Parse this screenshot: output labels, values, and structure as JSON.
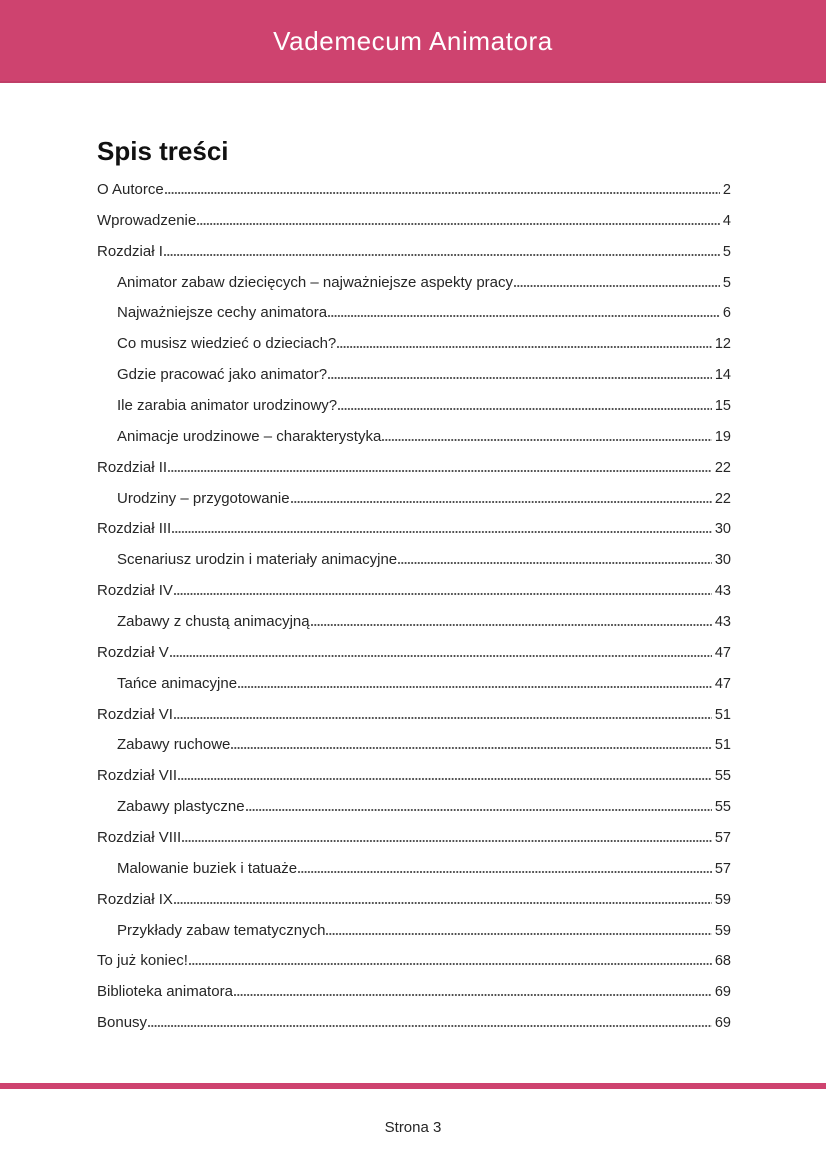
{
  "header": {
    "title": "Vademecum Animatora"
  },
  "toc": {
    "heading": "Spis treści",
    "entries": [
      {
        "label": "O Autorce",
        "page": "2",
        "level": 1
      },
      {
        "label": "Wprowadzenie",
        "page": "4",
        "level": 1
      },
      {
        "label": "Rozdział I",
        "page": "5",
        "level": 1
      },
      {
        "label": "Animator zabaw dziecięcych – najważniejsze aspekty pracy",
        "page": "5",
        "level": 2
      },
      {
        "label": "Najważniejsze cechy animatora",
        "page": "6",
        "level": 2
      },
      {
        "label": "Co musisz wiedzieć o dzieciach?",
        "page": "12",
        "level": 2
      },
      {
        "label": "Gdzie pracować jako animator?",
        "page": "14",
        "level": 2
      },
      {
        "label": "Ile zarabia animator urodzinowy?",
        "page": "15",
        "level": 2
      },
      {
        "label": "Animacje urodzinowe – charakterystyka",
        "page": "19",
        "level": 2
      },
      {
        "label": "Rozdział II",
        "page": "22",
        "level": 1
      },
      {
        "label": "Urodziny – przygotowanie",
        "page": "22",
        "level": 2
      },
      {
        "label": "Rozdział III",
        "page": "30",
        "level": 1
      },
      {
        "label": "Scenariusz urodzin i materiały animacyjne",
        "page": "30",
        "level": 2
      },
      {
        "label": "Rozdział IV",
        "page": "43",
        "level": 1
      },
      {
        "label": "Zabawy z chustą animacyjną",
        "page": "43",
        "level": 2
      },
      {
        "label": "Rozdział V",
        "page": "47",
        "level": 1
      },
      {
        "label": "Tańce animacyjne",
        "page": "47",
        "level": 2
      },
      {
        "label": "Rozdział VI",
        "page": "51",
        "level": 1
      },
      {
        "label": "Zabawy ruchowe",
        "page": "51",
        "level": 2
      },
      {
        "label": "Rozdział VII",
        "page": "55",
        "level": 1
      },
      {
        "label": "Zabawy plastyczne",
        "page": "55",
        "level": 2
      },
      {
        "label": "Rozdział VIII",
        "page": "57",
        "level": 1
      },
      {
        "label": "Malowanie buziek i tatuaże",
        "page": "57",
        "level": 2
      },
      {
        "label": "Rozdział IX",
        "page": "59",
        "level": 1
      },
      {
        "label": "Przykłady zabaw tematycznych",
        "page": "59",
        "level": 2
      },
      {
        "label": "To już koniec!",
        "page": "68",
        "level": 1
      },
      {
        "label": "Biblioteka animatora",
        "page": "69",
        "level": 1
      },
      {
        "label": "Bonusy",
        "page": "69",
        "level": 1
      }
    ]
  },
  "footer": {
    "page_label": "Strona 3"
  },
  "colors": {
    "accent": "#ce436f",
    "text": "#262626",
    "leader": "#4a4a4a",
    "header_text": "#ffffff"
  }
}
